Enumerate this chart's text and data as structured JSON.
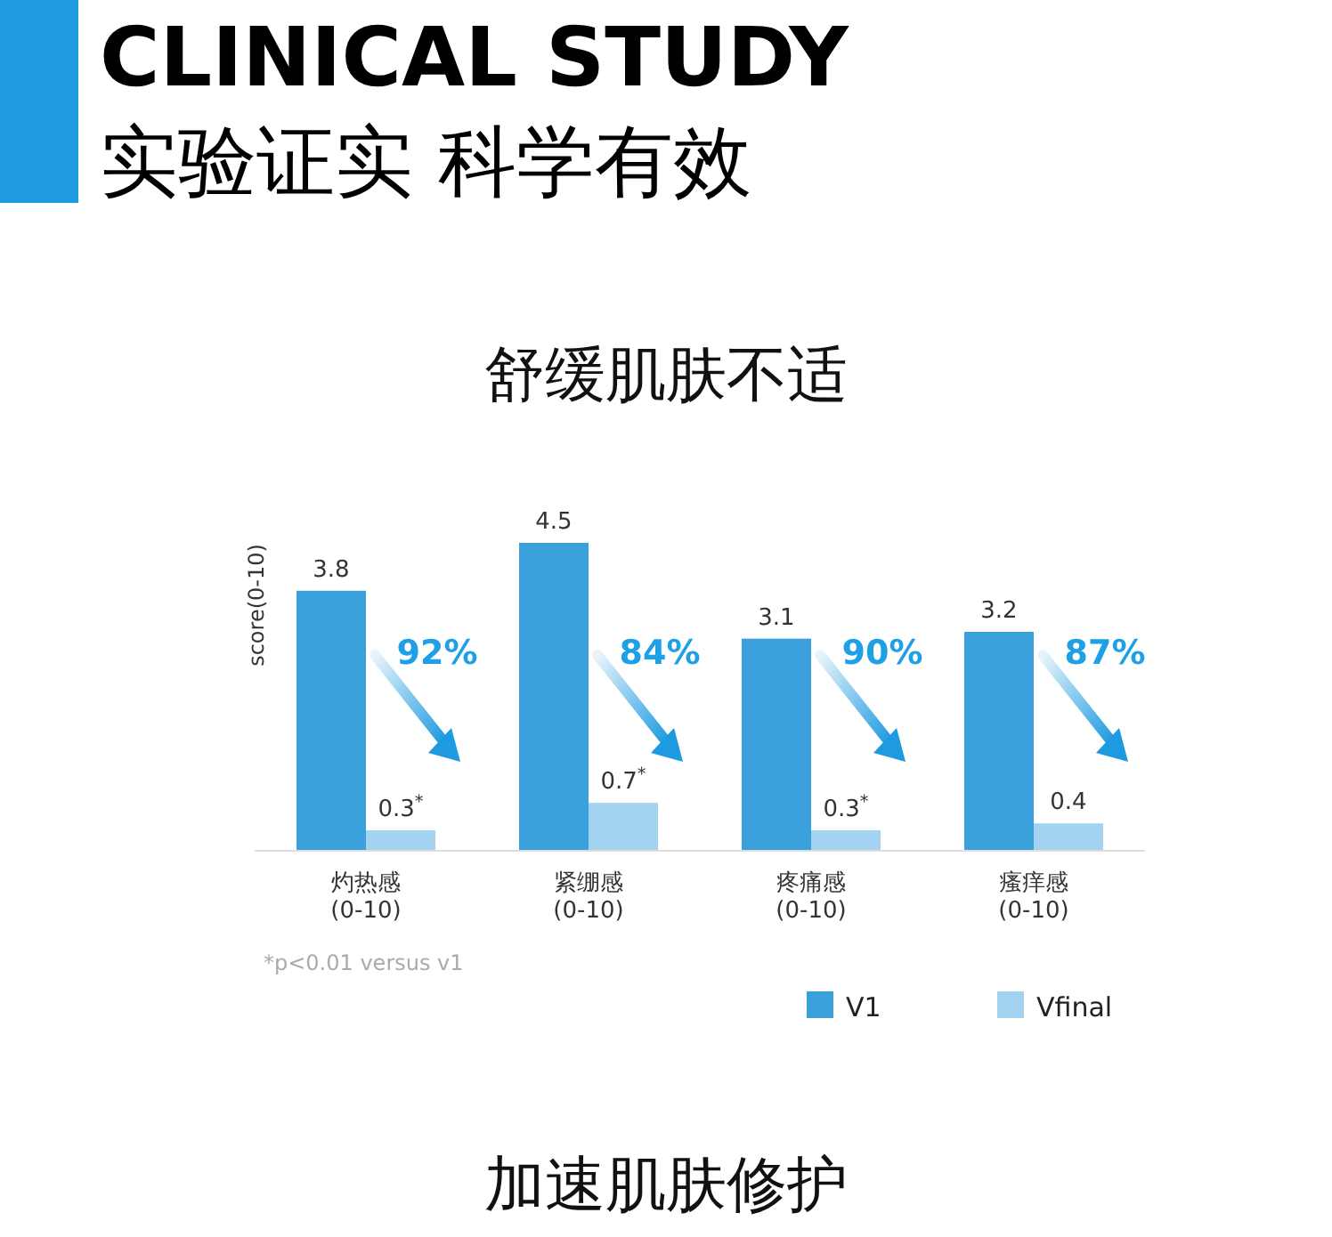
{
  "chart_data": {
    "type": "bar",
    "title": "CLINICAL STUDY",
    "subtitle": "实验证实 科学有效",
    "ylabel": "score(0-10)",
    "categories": [
      "灼热感\n(0-10)",
      "紧绷感\n(0-10)",
      "疼痛感\n(0-10)",
      "瘙痒感\n(0-10)"
    ],
    "series": [
      {
        "name": "V1",
        "color": "#3aa0dc",
        "values": [
          3.8,
          4.5,
          3.1,
          3.2
        ],
        "value_labels": [
          "3.8",
          "4.5",
          "3.1",
          "3.2"
        ]
      },
      {
        "name": "Vfinal",
        "color": "#a3d3f1",
        "values": [
          0.3,
          0.7,
          0.3,
          0.4
        ],
        "value_labels": [
          "0.3$^{*}$",
          "0.7$^{*}$",
          "0.3$^{*}$",
          "0.4"
        ]
      }
    ],
    "legend": "bottom right",
    "annotations": [
      "92%",
      "84%",
      "90%",
      "87%",
      "舒缓肌肤不适",
      "*p<0.01 versus v1",
      "加速肌肤修护"
    ]
  }
}
